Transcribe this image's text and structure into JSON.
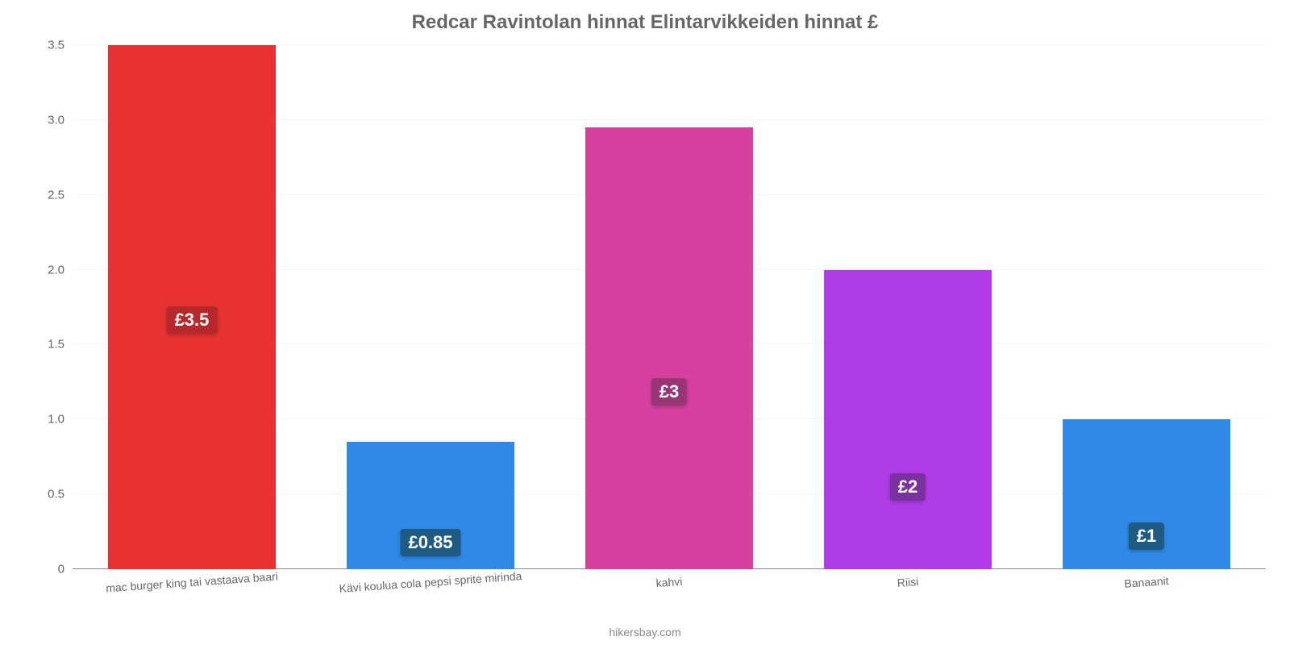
{
  "chart": {
    "type": "bar",
    "title": "Redcar Ravintolan hinnat Elintarvikkeiden hinnat £",
    "title_color": "#666666",
    "title_fontsize": 24,
    "background_color": "#ffffff",
    "grid_color": "#f5f5f5",
    "axis_line_color": "#888888",
    "axis_label_color": "#666666",
    "axis_label_fontsize": 15,
    "x_label_fontsize": 14,
    "x_label_color": "#666666",
    "x_label_rotate_deg": -4,
    "value_label_fontsize": 22,
    "ylim": [
      0,
      3.5
    ],
    "yticks": [
      0,
      0.5,
      1.0,
      1.5,
      2.0,
      2.5,
      3.0,
      3.5
    ],
    "ytick_labels": [
      "0",
      "0.5",
      "1.0",
      "1.5",
      "2.0",
      "2.5",
      "3.0",
      "3.5"
    ],
    "bar_width_pct": 14,
    "bars": [
      {
        "category": "mac burger king tai vastaava baari",
        "value": 3.5,
        "display": "£3.5",
        "center_pct": 10,
        "color": "#e83232",
        "label_bg": "#b7282c",
        "label_y_pct": 45
      },
      {
        "category": "Kävi koulua cola pepsi sprite mirinda",
        "value": 0.85,
        "display": "£0.85",
        "center_pct": 30,
        "color": "#2e8ae6",
        "label_bg": "#1e5a82",
        "label_y_pct": 10
      },
      {
        "category": "kahvi",
        "value": 2.95,
        "display": "£3",
        "center_pct": 50,
        "color": "#d6409f",
        "label_bg": "#983574",
        "label_y_pct": 37
      },
      {
        "category": "Riisi",
        "value": 2.0,
        "display": "£2",
        "center_pct": 70,
        "color": "#b03ce8",
        "label_bg": "#7c31a0",
        "label_y_pct": 23
      },
      {
        "category": "Banaanit",
        "value": 1.0,
        "display": "£1",
        "center_pct": 90,
        "color": "#2e8ae6",
        "label_bg": "#1e5a82",
        "label_y_pct": 13
      }
    ],
    "attribution": "hikersbay.com",
    "attribution_color": "#888888",
    "attribution_fontsize": 14
  }
}
